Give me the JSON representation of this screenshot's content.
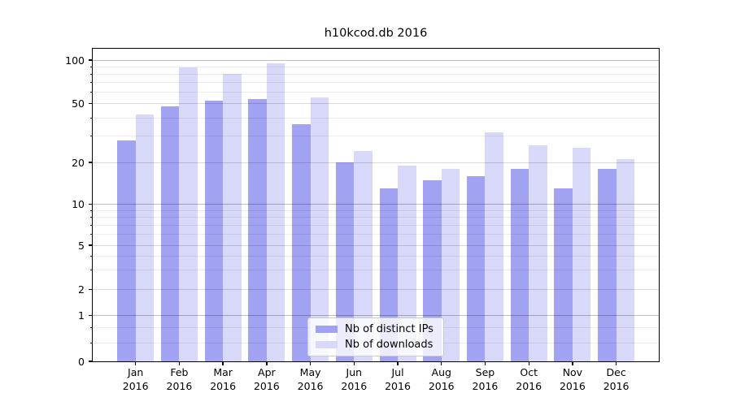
{
  "chart_data": {
    "type": "bar",
    "title": "h10kcod.db 2016",
    "x_tick_year": "2016",
    "categories": [
      "Jan",
      "Feb",
      "Mar",
      "Apr",
      "May",
      "Jun",
      "Jul",
      "Aug",
      "Sep",
      "Oct",
      "Nov",
      "Dec"
    ],
    "series": [
      {
        "name": "Nb of distinct IPs",
        "color": "#a2a2f2",
        "values": [
          28,
          48,
          52,
          54,
          36,
          20,
          13,
          15,
          16,
          18,
          13,
          18
        ]
      },
      {
        "name": "Nb of downloads",
        "color": "#d8d8f8",
        "values": [
          42,
          89,
          80,
          95,
          55,
          24,
          19,
          18,
          32,
          26,
          25,
          21
        ]
      }
    ],
    "yscale": "log-with-zero (symlog style)",
    "y_tick_labels": [
      "100",
      "50",
      "20",
      "10",
      "5",
      "2",
      "1",
      "0"
    ],
    "y_tick_values": [
      100,
      50,
      20,
      10,
      5,
      2,
      1,
      0
    ],
    "y_major_gridline_values": [
      100,
      10,
      1
    ],
    "y_labeled_gridline_values": [
      50,
      20,
      5,
      2
    ],
    "y_minor_gridline_values": [
      90,
      80,
      70,
      60,
      40,
      30,
      9,
      8,
      7,
      6,
      4,
      3,
      0.5,
      0.2
    ],
    "ylim_top_label": "100",
    "legend_position": "bottom center inside plot",
    "grid": true,
    "colors": {
      "axis": "#000000",
      "background": "#ffffff",
      "major_grid": "#bdbdbd",
      "minor_grid": "#ededed"
    }
  }
}
